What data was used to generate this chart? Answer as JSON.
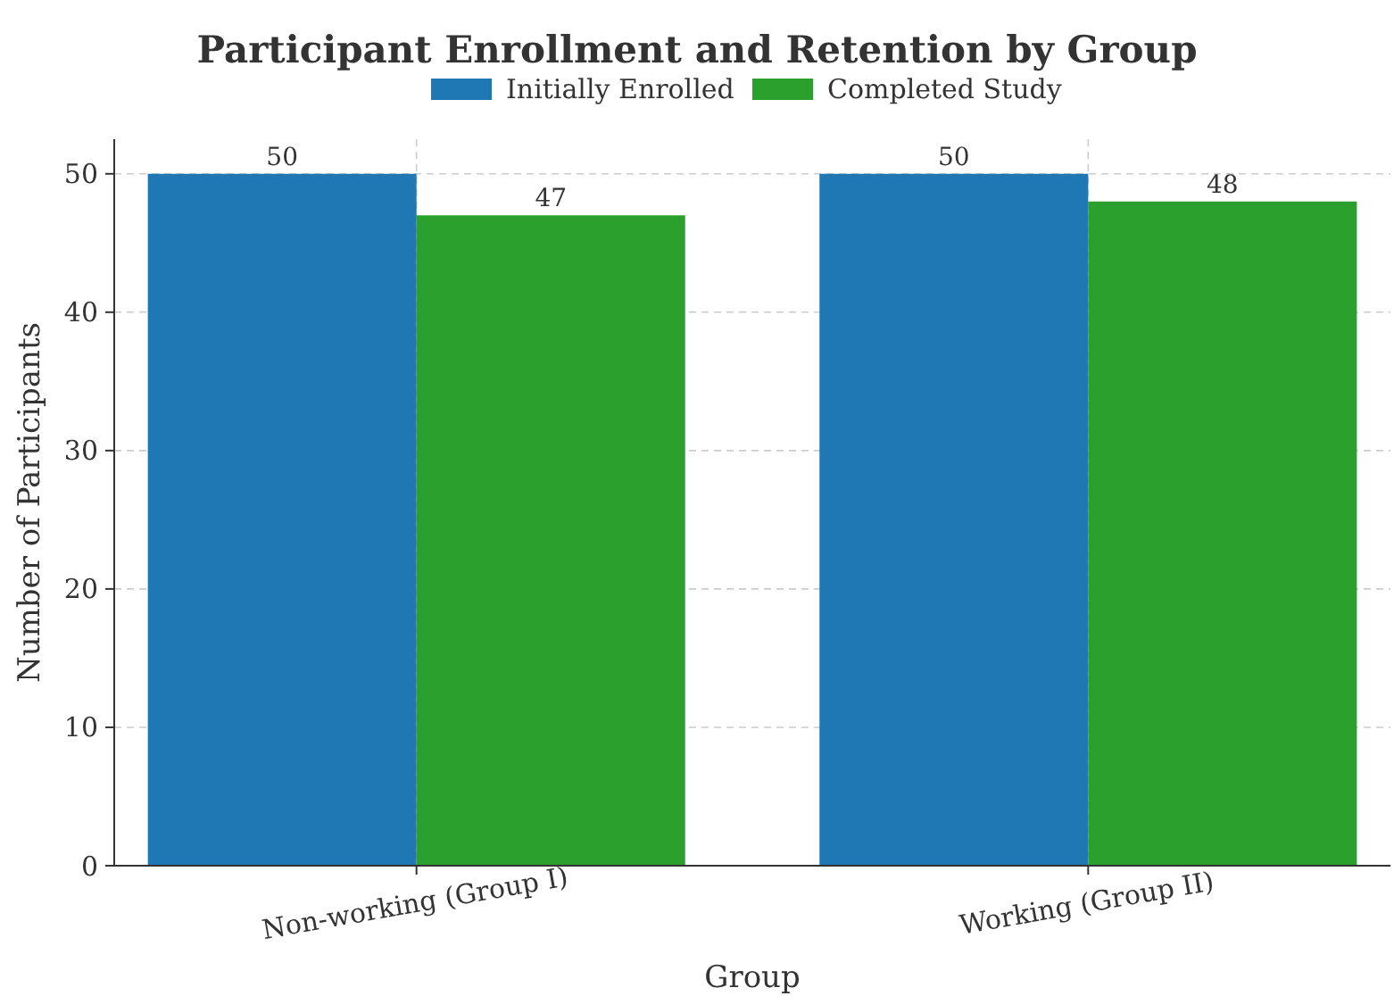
{
  "chart_data": {
    "type": "bar",
    "title": "Participant Enrollment and Retention by Group",
    "xlabel": "Group",
    "ylabel": "Number of Participants",
    "categories": [
      "Non-working (Group I)",
      "Working (Group II)"
    ],
    "series": [
      {
        "name": "Initially Enrolled",
        "color": "#1f77b4",
        "values": [
          50,
          50
        ]
      },
      {
        "name": "Completed Study",
        "color": "#2ca02c",
        "values": [
          47,
          48
        ]
      }
    ],
    "ylim": [
      0,
      52.5
    ],
    "yticks": [
      0,
      10,
      20,
      30,
      40,
      50
    ],
    "grid": true,
    "legend": "top",
    "data_labels": true
  }
}
